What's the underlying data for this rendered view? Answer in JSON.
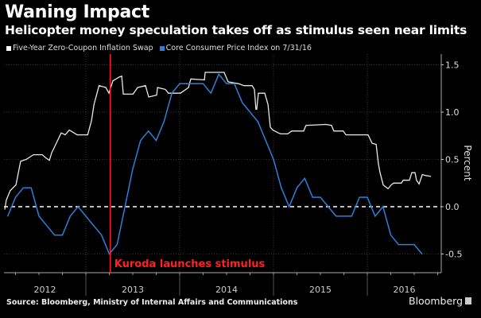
{
  "chart_data": {
    "type": "line",
    "title": "Waning Impact",
    "subtitle": "Helicopter money speculation takes off as stimulus seen near limits",
    "ylabel": "Percent",
    "ylim": [
      -0.7,
      1.6
    ],
    "yticks": [
      1.5,
      1.0,
      0.5,
      0.0,
      -0.5
    ],
    "ytick_labels": [
      "1.5",
      "1.0",
      "0.5",
      "0.0",
      "-0.5"
    ],
    "xticks": [
      "2012",
      "2013",
      "2014",
      "2015",
      "2016"
    ],
    "xlim": [
      "2012-02-14",
      "2016-10-10"
    ],
    "grid": true,
    "zero_line": "dashed",
    "legend_position": "top-left",
    "annotation": {
      "date": "2013-04-04",
      "label": "Kuroda launches stimulus",
      "color": "#ff2020"
    },
    "series": [
      {
        "name": "Five-Year Zero-Coupon Inflation Swap",
        "color": "#e8e8e8",
        "points": [
          [
            "2012-02-19",
            -0.03
          ],
          [
            "2012-02-25",
            0.07
          ],
          [
            "2012-03-10",
            0.17
          ],
          [
            "2012-04-02",
            0.23
          ],
          [
            "2012-04-20",
            0.48
          ],
          [
            "2012-05-11",
            0.5
          ],
          [
            "2012-06-09",
            0.55
          ],
          [
            "2012-07-13",
            0.55
          ],
          [
            "2012-07-25",
            0.52
          ],
          [
            "2012-08-10",
            0.49
          ],
          [
            "2012-08-19",
            0.57
          ],
          [
            "2012-09-10",
            0.69
          ],
          [
            "2012-09-26",
            0.78
          ],
          [
            "2012-10-11",
            0.76
          ],
          [
            "2012-10-27",
            0.81
          ],
          [
            "2012-11-27",
            0.76
          ],
          [
            "2013-01-07",
            0.76
          ],
          [
            "2013-01-22",
            0.91
          ],
          [
            "2013-02-01",
            1.08
          ],
          [
            "2013-02-21",
            1.28
          ],
          [
            "2013-03-17",
            1.26
          ],
          [
            "2013-03-29",
            1.2
          ],
          [
            "2013-04-14",
            1.33
          ],
          [
            "2013-05-08",
            1.37
          ],
          [
            "2013-05-18",
            1.38
          ],
          [
            "2013-05-24",
            1.19
          ],
          [
            "2013-07-01",
            1.19
          ],
          [
            "2013-07-19",
            1.26
          ],
          [
            "2013-08-19",
            1.28
          ],
          [
            "2013-09-01",
            1.16
          ],
          [
            "2013-10-02",
            1.18
          ],
          [
            "2013-10-05",
            1.26
          ],
          [
            "2013-11-05",
            1.24
          ],
          [
            "2013-11-17",
            1.2
          ],
          [
            "2014-01-03",
            1.2
          ],
          [
            "2014-02-04",
            1.26
          ],
          [
            "2014-02-13",
            1.35
          ],
          [
            "2014-04-05",
            1.34
          ],
          [
            "2014-04-08",
            1.42
          ],
          [
            "2014-06-21",
            1.42
          ],
          [
            "2014-07-06",
            1.32
          ],
          [
            "2014-08-16",
            1.3
          ],
          [
            "2014-09-07",
            1.28
          ],
          [
            "2014-10-08",
            1.28
          ],
          [
            "2014-10-17",
            1.24
          ],
          [
            "2014-10-23",
            1.03
          ],
          [
            "2014-10-26",
            1.03
          ],
          [
            "2014-11-02",
            1.2
          ],
          [
            "2014-11-27",
            1.2
          ],
          [
            "2014-12-09",
            1.08
          ],
          [
            "2014-12-18",
            0.84
          ],
          [
            "2014-12-28",
            0.81
          ],
          [
            "2015-01-19",
            0.78
          ],
          [
            "2015-01-28",
            0.77
          ],
          [
            "2015-02-25",
            0.77
          ],
          [
            "2015-03-10",
            0.8
          ],
          [
            "2015-04-26",
            0.8
          ],
          [
            "2015-05-05",
            0.86
          ],
          [
            "2015-07-21",
            0.87
          ],
          [
            "2015-08-13",
            0.86
          ],
          [
            "2015-08-22",
            0.8
          ],
          [
            "2015-09-28",
            0.8
          ],
          [
            "2015-10-08",
            0.76
          ],
          [
            "2016-01-03",
            0.76
          ],
          [
            "2016-01-19",
            0.67
          ],
          [
            "2016-02-04",
            0.66
          ],
          [
            "2016-02-13",
            0.45
          ],
          [
            "2016-02-19",
            0.36
          ],
          [
            "2016-03-01",
            0.23
          ],
          [
            "2016-03-20",
            0.19
          ],
          [
            "2016-04-02",
            0.23
          ],
          [
            "2016-04-11",
            0.25
          ],
          [
            "2016-05-11",
            0.25
          ],
          [
            "2016-05-18",
            0.28
          ],
          [
            "2016-06-12",
            0.28
          ],
          [
            "2016-06-21",
            0.36
          ],
          [
            "2016-07-03",
            0.36
          ],
          [
            "2016-07-09",
            0.28
          ],
          [
            "2016-07-19",
            0.24
          ],
          [
            "2016-08-01",
            0.34
          ],
          [
            "2016-08-13",
            0.33
          ],
          [
            "2016-09-04",
            0.32
          ]
        ]
      },
      {
        "name": "Core Consumer Price Index on 7/31/16",
        "color": "#2f7fd8",
        "monthly": [
          [
            "2012-02",
            -0.1
          ],
          [
            "2012-03",
            0.1
          ],
          [
            "2012-04",
            0.2
          ],
          [
            "2012-05",
            0.2
          ],
          [
            "2012-06",
            -0.1
          ],
          [
            "2012-07",
            -0.2
          ],
          [
            "2012-08",
            -0.3
          ],
          [
            "2012-09",
            -0.3
          ],
          [
            "2012-10",
            -0.1
          ],
          [
            "2012-11",
            0.0
          ],
          [
            "2012-12",
            -0.1
          ],
          [
            "2013-01",
            -0.2
          ],
          [
            "2013-02",
            -0.3
          ],
          [
            "2013-03",
            -0.5
          ],
          [
            "2013-04",
            -0.4
          ],
          [
            "2013-05",
            0.0
          ],
          [
            "2013-06",
            0.4
          ],
          [
            "2013-07",
            0.7
          ],
          [
            "2013-08",
            0.8
          ],
          [
            "2013-09",
            0.7
          ],
          [
            "2013-10",
            0.9
          ],
          [
            "2013-11",
            1.2
          ],
          [
            "2013-12",
            1.3
          ],
          [
            "2014-01",
            1.3
          ],
          [
            "2014-02",
            1.3
          ],
          [
            "2014-03",
            1.3
          ],
          [
            "2014-04",
            1.2
          ],
          [
            "2014-05",
            1.4
          ],
          [
            "2014-06",
            1.3
          ],
          [
            "2014-07",
            1.3
          ],
          [
            "2014-08",
            1.1
          ],
          [
            "2014-09",
            1.0
          ],
          [
            "2014-10",
            0.9
          ],
          [
            "2014-11",
            0.7
          ],
          [
            "2014-12",
            0.5
          ],
          [
            "2015-01",
            0.2
          ],
          [
            "2015-02",
            0.0
          ],
          [
            "2015-03",
            0.2
          ],
          [
            "2015-04",
            0.3
          ],
          [
            "2015-05",
            0.1
          ],
          [
            "2015-06",
            0.1
          ],
          [
            "2015-07",
            0.0
          ],
          [
            "2015-08",
            -0.1
          ],
          [
            "2015-09",
            -0.1
          ],
          [
            "2015-10",
            -0.1
          ],
          [
            "2015-11",
            0.1
          ],
          [
            "2015-12",
            0.1
          ],
          [
            "2016-01",
            -0.1
          ],
          [
            "2016-02",
            0.0
          ],
          [
            "2016-03",
            -0.3
          ],
          [
            "2016-04",
            -0.4
          ],
          [
            "2016-05",
            -0.4
          ],
          [
            "2016-06",
            -0.4
          ],
          [
            "2016-07",
            -0.5
          ]
        ]
      }
    ]
  },
  "footer": {
    "source": "Source: Bloomberg, Ministry of Internal Affairs and Communications",
    "logo": "Bloomberg"
  }
}
